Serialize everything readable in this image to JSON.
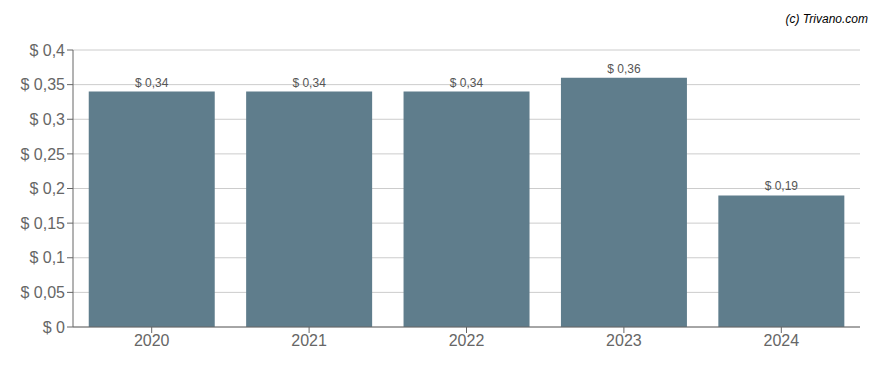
{
  "chart_data": {
    "type": "bar",
    "categories": [
      "2020",
      "2021",
      "2022",
      "2023",
      "2024"
    ],
    "values": [
      0.34,
      0.34,
      0.34,
      0.36,
      0.19
    ],
    "value_labels": [
      "$ 0,34",
      "$ 0,34",
      "$ 0,34",
      "$ 0,36",
      "$ 0,19"
    ],
    "color": "#5f7d8c",
    "ylim": [
      0,
      0.4
    ],
    "yticks": [
      {
        "value": 0,
        "label": "$ 0"
      },
      {
        "value": 0.05,
        "label": "$ 0,05"
      },
      {
        "value": 0.1,
        "label": "$ 0,1"
      },
      {
        "value": 0.15,
        "label": "$ 0,15"
      },
      {
        "value": 0.2,
        "label": "$ 0,2"
      },
      {
        "value": 0.25,
        "label": "$ 0,25"
      },
      {
        "value": 0.3,
        "label": "$ 0,3"
      },
      {
        "value": 0.35,
        "label": "$ 0,35"
      },
      {
        "value": 0.4,
        "label": "$ 0,4"
      }
    ],
    "grid": true,
    "data_labels": true,
    "annotations": [
      "(c) Trivano.com"
    ]
  }
}
